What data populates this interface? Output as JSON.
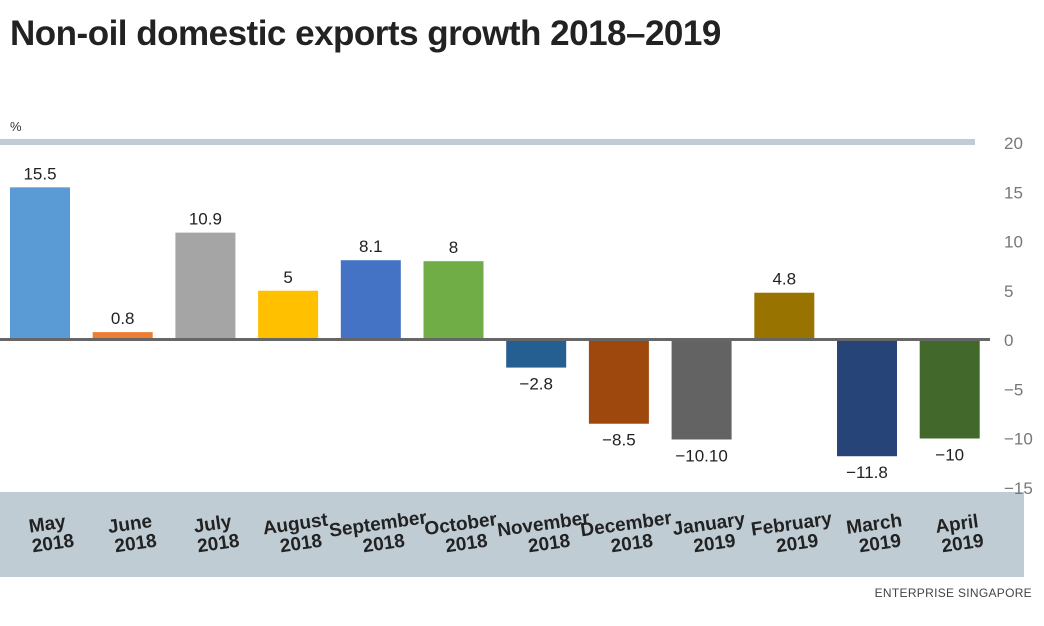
{
  "title": "Non-oil domestic exports growth 2018–2019",
  "source": "ENTERPRISE SINGAPORE",
  "chart_data": {
    "type": "bar",
    "title": "Non-oil domestic exports growth 2018–2019",
    "ylabel": "%",
    "xlabel": "",
    "ylim": [
      -15,
      20
    ],
    "yticks": [
      20,
      15,
      10,
      5,
      0,
      -5,
      -10,
      -15
    ],
    "ytick_labels": [
      "20",
      "15",
      "10",
      "5",
      "0",
      "−5",
      "−10",
      "−15"
    ],
    "categories": [
      [
        "May",
        "2018"
      ],
      [
        "June",
        "2018"
      ],
      [
        "July",
        "2018"
      ],
      [
        "August",
        "2018"
      ],
      [
        "September",
        "2018"
      ],
      [
        "October",
        "2018"
      ],
      [
        "November",
        "2018"
      ],
      [
        "December",
        "2018"
      ],
      [
        "January",
        "2019"
      ],
      [
        "February",
        "2019"
      ],
      [
        "March",
        "2019"
      ],
      [
        "April",
        "2019"
      ]
    ],
    "values": [
      15.5,
      0.8,
      10.9,
      5,
      8.1,
      8,
      -2.8,
      -8.5,
      -10.1,
      4.8,
      -11.8,
      -10
    ],
    "value_labels": [
      "15.5",
      "0.8",
      "10.9",
      "5",
      "8.1",
      "8",
      "−2.8",
      "−8.5",
      "−10.10",
      "4.8",
      "−11.8",
      "−10"
    ],
    "colors": [
      "#5b9bd5",
      "#ed7d31",
      "#a5a5a5",
      "#ffc000",
      "#4472c4",
      "#70ad47",
      "#255e91",
      "#9e480e",
      "#636363",
      "#997300",
      "#264478",
      "#43682b"
    ],
    "grid": false,
    "axis_position": "right"
  }
}
